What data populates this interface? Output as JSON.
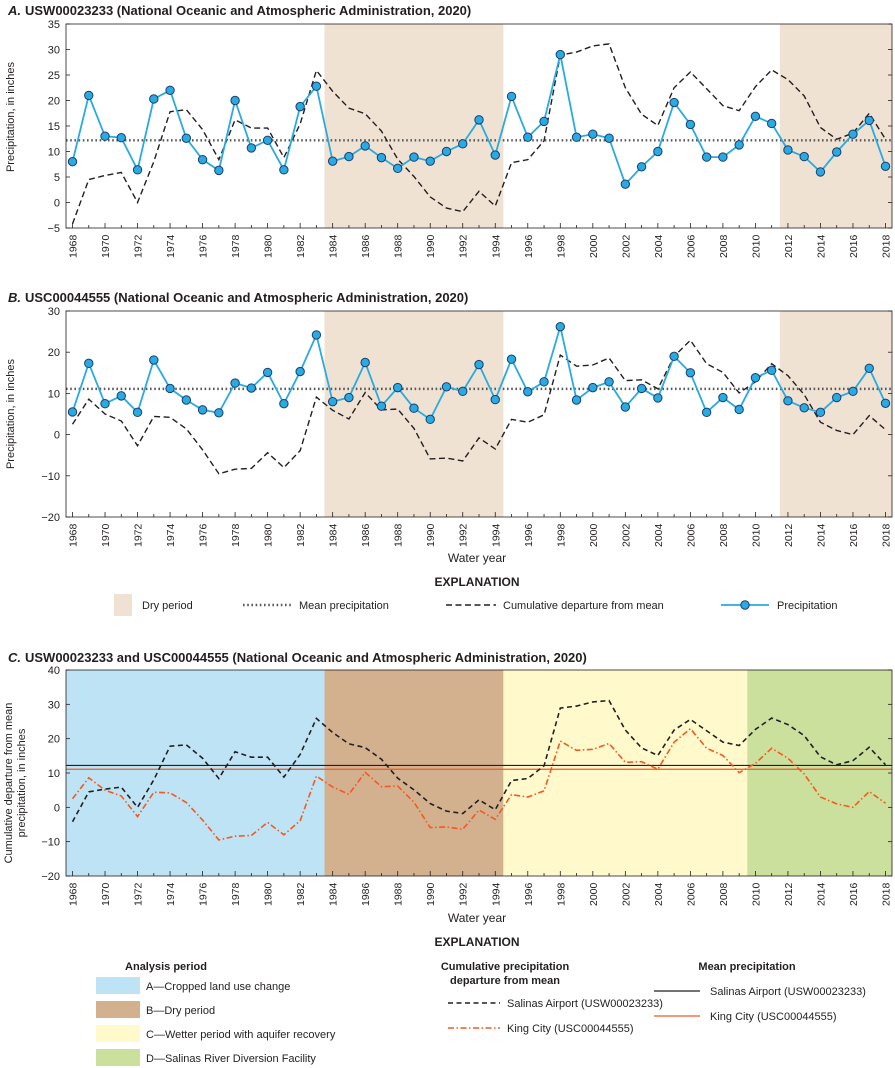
{
  "colors": {
    "precip": "#29aae1",
    "precip_marker_edge": "#1a3e6e",
    "mean_line": "#58595b",
    "cumdep": "#231f20",
    "king_city": "#f15a24",
    "dry_period": "#efe2d3",
    "period_A": "#bde3f5",
    "period_B": "#d3b18f",
    "period_C": "#fff9cc",
    "period_D": "#cbe09d"
  },
  "years": [
    1968,
    1969,
    1970,
    1971,
    1972,
    1973,
    1974,
    1975,
    1976,
    1977,
    1978,
    1979,
    1980,
    1981,
    1982,
    1983,
    1984,
    1985,
    1986,
    1987,
    1988,
    1989,
    1990,
    1991,
    1992,
    1993,
    1994,
    1995,
    1996,
    1997,
    1998,
    1999,
    2000,
    2001,
    2002,
    2003,
    2004,
    2005,
    2006,
    2007,
    2008,
    2009,
    2010,
    2011,
    2012,
    2013,
    2014,
    2015,
    2016,
    2017,
    2018
  ],
  "chart_data": [
    {
      "id": "A",
      "type": "line",
      "title_letter": "A.",
      "title": "USW00023233 (National Oceanic and Atmospheric Administration, 2020)",
      "ylabel": "Precipitation, in inches",
      "xlabel": "",
      "ylim": [
        -5,
        35
      ],
      "yticks": [
        -5,
        0,
        5,
        10,
        15,
        20,
        25,
        30,
        35
      ],
      "xlim": [
        1967.6,
        2018.4
      ],
      "xticks": [
        1968,
        1970,
        1972,
        1974,
        1976,
        1978,
        1980,
        1982,
        1984,
        1986,
        1988,
        1990,
        1992,
        1994,
        1996,
        1998,
        2000,
        2002,
        2004,
        2006,
        2008,
        2010,
        2012,
        2014,
        2016,
        2018
      ],
      "shaded_periods": [
        [
          1983.5,
          1994.5
        ],
        [
          2011.5,
          2018.4
        ]
      ],
      "mean": 12.2,
      "series": [
        {
          "name": "Precipitation",
          "values": [
            8.0,
            21.0,
            13.0,
            12.7,
            6.4,
            20.3,
            22.0,
            12.6,
            8.4,
            6.3,
            20.0,
            10.7,
            12.2,
            6.4,
            18.8,
            22.8,
            8.1,
            9.0,
            11.1,
            8.8,
            6.7,
            8.9,
            8.1,
            10.0,
            11.5,
            16.2,
            9.3,
            20.8,
            12.8,
            15.9,
            29.0,
            12.8,
            13.4,
            12.6,
            3.6,
            7.0,
            10.0,
            19.6,
            15.3,
            8.9,
            8.9,
            11.3,
            16.9,
            15.5,
            10.3,
            9.0,
            6.0,
            9.9,
            13.4,
            16.1,
            7.1
          ]
        },
        {
          "name": "Cumulative departure from mean",
          "values": [
            -4.2,
            4.5,
            5.3,
            5.9,
            0.0,
            8.0,
            17.8,
            18.2,
            14.3,
            8.4,
            16.2,
            14.6,
            14.6,
            8.8,
            15.4,
            25.9,
            21.8,
            18.5,
            17.4,
            14.0,
            8.5,
            5.1,
            1.1,
            -1.1,
            -1.8,
            2.2,
            -0.7,
            7.8,
            8.4,
            12.1,
            28.9,
            29.5,
            30.7,
            31.1,
            22.5,
            17.3,
            15.1,
            22.5,
            25.6,
            22.3,
            19.0,
            18.0,
            22.7,
            26.0,
            24.1,
            20.9,
            14.7,
            12.4,
            13.6,
            17.5,
            12.4
          ]
        }
      ],
      "x_data": "years"
    },
    {
      "id": "B",
      "type": "line",
      "title_letter": "B.",
      "title": "USC00044555 (National Oceanic and Atmospheric Administration, 2020)",
      "ylabel": "Precipitation, in inches",
      "xlabel": "Water year",
      "ylim": [
        -20,
        30
      ],
      "yticks": [
        -20,
        -10,
        0,
        10,
        20,
        30
      ],
      "xlim": [
        1967.6,
        2018.4
      ],
      "xticks": [
        1968,
        1970,
        1972,
        1974,
        1976,
        1978,
        1980,
        1982,
        1984,
        1986,
        1988,
        1990,
        1992,
        1994,
        1996,
        1998,
        2000,
        2002,
        2004,
        2006,
        2008,
        2010,
        2012,
        2014,
        2016,
        2018
      ],
      "shaded_periods": [
        [
          1983.5,
          1994.5
        ],
        [
          2011.5,
          2018.4
        ]
      ],
      "mean": 11.1,
      "series": [
        {
          "name": "Precipitation",
          "values": [
            5.5,
            17.3,
            7.5,
            9.4,
            5.4,
            18.1,
            11.2,
            8.4,
            6.0,
            5.3,
            12.5,
            11.3,
            15.1,
            7.5,
            15.3,
            24.2,
            8.0,
            9.0,
            17.5,
            6.9,
            11.4,
            6.4,
            3.7,
            11.6,
            10.5,
            17.0,
            8.5,
            18.3,
            10.4,
            12.8,
            26.2,
            8.4,
            11.4,
            12.8,
            6.7,
            11.2,
            8.9,
            19.0,
            15.0,
            5.4,
            9.0,
            6.1,
            13.8,
            15.6,
            8.2,
            6.5,
            5.4,
            9.0,
            10.5,
            16.1,
            7.6
          ]
        },
        {
          "name": "Cumulative departure from mean",
          "values": [
            2.5,
            8.6,
            5.0,
            3.3,
            -2.7,
            4.4,
            4.2,
            1.4,
            -3.7,
            -9.5,
            -8.4,
            -8.2,
            -4.4,
            -8.0,
            -3.9,
            9.1,
            5.9,
            3.8,
            10.2,
            6.0,
            6.2,
            1.5,
            -5.9,
            -5.7,
            -6.4,
            -0.8,
            -3.5,
            3.7,
            3.0,
            4.8,
            19.3,
            16.6,
            16.9,
            18.6,
            13.1,
            13.3,
            11.1,
            19.0,
            22.9,
            17.2,
            15.1,
            10.1,
            12.8,
            17.2,
            14.3,
            9.7,
            3.0,
            1.0,
            0.0,
            4.6,
            1.2
          ]
        }
      ],
      "x_data": "years"
    },
    {
      "id": "C",
      "type": "line",
      "title_letter": "C.",
      "title": "USW00023233 and USC00044555 (National Oceanic and Atmospheric Administration, 2020)",
      "ylabel": "Cumulative departure from mean precipitation, in inches",
      "xlabel": "Water year",
      "ylim": [
        -20,
        40
      ],
      "yticks": [
        -20,
        -10,
        0,
        10,
        20,
        30,
        40
      ],
      "xlim": [
        1967.6,
        2018.4
      ],
      "xticks": [
        1968,
        1970,
        1972,
        1974,
        1976,
        1978,
        1980,
        1982,
        1984,
        1986,
        1988,
        1990,
        1992,
        1994,
        1996,
        1998,
        2000,
        2002,
        2004,
        2006,
        2008,
        2010,
        2012,
        2014,
        2016,
        2018
      ],
      "analysis_periods": [
        {
          "key": "A",
          "range": [
            1967.6,
            1983.5
          ]
        },
        {
          "key": "B",
          "range": [
            1983.5,
            1994.5
          ]
        },
        {
          "key": "C",
          "range": [
            1994.5,
            2009.5
          ]
        },
        {
          "key": "D",
          "range": [
            2009.5,
            2018.4
          ]
        }
      ],
      "mean_lines": [
        {
          "name": "Salinas Airport (USW00023233)",
          "value": 12.2
        },
        {
          "name": "King City (USC00044555)",
          "value": 11.1
        }
      ],
      "series": [
        {
          "name": "Salinas Airport (USW00023233)",
          "values": [
            -4.2,
            4.5,
            5.3,
            5.9,
            0.0,
            8.0,
            17.8,
            18.2,
            14.3,
            8.4,
            16.2,
            14.6,
            14.6,
            8.8,
            15.4,
            25.9,
            21.8,
            18.5,
            17.4,
            14.0,
            8.5,
            5.1,
            1.1,
            -1.1,
            -1.8,
            2.2,
            -0.7,
            7.8,
            8.4,
            12.1,
            28.9,
            29.5,
            30.7,
            31.1,
            22.5,
            17.3,
            15.1,
            22.5,
            25.6,
            22.3,
            19.0,
            18.0,
            22.7,
            26.0,
            24.1,
            20.9,
            14.7,
            12.4,
            13.6,
            17.5,
            12.4
          ]
        },
        {
          "name": "King City (USC00044555)",
          "values": [
            2.5,
            8.6,
            5.0,
            3.3,
            -2.7,
            4.4,
            4.2,
            1.4,
            -3.7,
            -9.5,
            -8.4,
            -8.2,
            -4.4,
            -8.0,
            -3.9,
            9.1,
            5.9,
            3.8,
            10.2,
            6.0,
            6.2,
            1.5,
            -5.9,
            -5.7,
            -6.4,
            -0.8,
            -3.5,
            3.7,
            3.0,
            4.8,
            19.3,
            16.6,
            16.9,
            18.6,
            13.1,
            13.3,
            11.1,
            19.0,
            22.9,
            17.2,
            15.1,
            10.1,
            12.8,
            17.2,
            14.3,
            9.7,
            3.0,
            1.0,
            0.0,
            4.6,
            1.2
          ]
        }
      ],
      "x_data": "years"
    }
  ],
  "legend1": {
    "title": "EXPLANATION",
    "dry_period": "Dry period",
    "mean_precip": "Mean precipitation",
    "cumdep": "Cumulative departure from mean",
    "precip": "Precipitation"
  },
  "legend2": {
    "title": "EXPLANATION",
    "analysis_title": "Analysis period",
    "analysis_items": [
      {
        "key": "A",
        "label": "A—Cropped land use change"
      },
      {
        "key": "B",
        "label": "B—Dry period"
      },
      {
        "key": "C",
        "label": "C—Wetter period with aquifer recovery"
      },
      {
        "key": "D",
        "label": "D—Salinas River Diversion Facility"
      }
    ],
    "cum_title_1": "Cumulative precipitation",
    "cum_title_2": "departure from mean",
    "cum_items": [
      "Salinas Airport (USW00023233)",
      "King City (USC00044555)"
    ],
    "mean_title": "Mean precipitation",
    "mean_items": [
      "Salinas Airport (USW00023233)",
      "King City (USC00044555)"
    ]
  }
}
